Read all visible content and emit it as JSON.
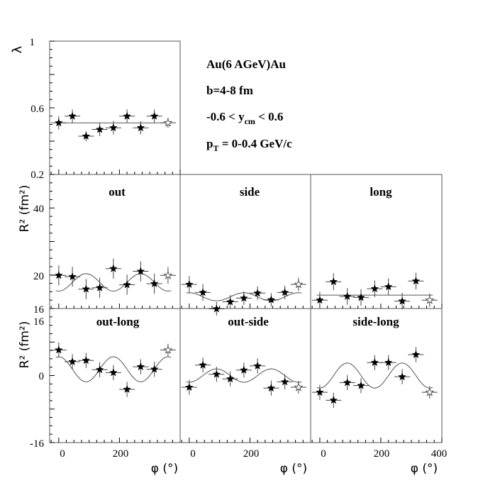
{
  "annotations": {
    "system": "Au(6 AGeV)Au",
    "impact": "b=4-8 fm",
    "rapidity_prefix": "-0.6 < y",
    "rapidity_sub": "cm",
    "rapidity_suffix": " < 0.6",
    "pt_prefix": "p",
    "pt_sub": "T",
    "pt_suffix": " = 0-0.4 GeV/c"
  },
  "axes": {
    "lambda_label": "λ",
    "r2_label": "R² (fm²)",
    "x_label": "φ (°)",
    "lambda_ticks": [
      "1",
      "0.6",
      "0.2"
    ],
    "r2_mid_ticks": [
      "40",
      "20",
      "16"
    ],
    "r2_bot_ticks": [
      "16",
      "0",
      "-16"
    ],
    "x_ticks": [
      "0",
      "200",
      "400"
    ]
  },
  "chart_data": [
    {
      "type": "scatter",
      "panel": "lambda",
      "title": "",
      "ylim": [
        0.2,
        1.0
      ],
      "xlim": [
        -30,
        400
      ],
      "fit": {
        "mean": 0.51,
        "amplitude": 0.0
      },
      "x": [
        0,
        45,
        90,
        135,
        180,
        225,
        270,
        315,
        360
      ],
      "y": [
        0.51,
        0.55,
        0.43,
        0.47,
        0.48,
        0.55,
        0.48,
        0.55,
        0.51
      ],
      "yerr": [
        0.04,
        0.04,
        0.03,
        0.04,
        0.04,
        0.04,
        0.04,
        0.04,
        0.03
      ]
    },
    {
      "type": "scatter",
      "panel": "out",
      "title": "out",
      "ylim": [
        16,
        56
      ],
      "xlim": [
        -30,
        400
      ],
      "fit": {
        "mean": 23.8,
        "amplitude": -2.6
      },
      "x": [
        0,
        45,
        90,
        135,
        180,
        225,
        270,
        315,
        360
      ],
      "y": [
        25.9,
        25.5,
        21.8,
        22.2,
        27.9,
        23.1,
        27.1,
        23.4,
        25.9
      ],
      "yerr": [
        3.0,
        3.0,
        3.0,
        3.0,
        3.0,
        3.0,
        3.0,
        3.0,
        2.5
      ]
    },
    {
      "type": "scatter",
      "panel": "side",
      "title": "side",
      "ylim": [
        16,
        56
      ],
      "xlim": [
        -30,
        400
      ],
      "fit": {
        "mean": 19.5,
        "amplitude": 1.2
      },
      "x": [
        0,
        45,
        90,
        135,
        180,
        225,
        270,
        315,
        360
      ],
      "y": [
        23.2,
        20.8,
        15.9,
        18.0,
        19.1,
        20.6,
        18.6,
        20.8,
        23.2
      ],
      "yerr": [
        2.5,
        2.5,
        2.0,
        2.0,
        2.0,
        2.0,
        2.0,
        2.0,
        2.0
      ]
    },
    {
      "type": "scatter",
      "panel": "long",
      "title": "long",
      "ylim": [
        16,
        56
      ],
      "xlim": [
        -30,
        400
      ],
      "fit": {
        "mean": 20.0,
        "amplitude": 0.0
      },
      "x": [
        0,
        45,
        90,
        135,
        180,
        225,
        270,
        315,
        360
      ],
      "y": [
        18.5,
        24.0,
        19.6,
        19.3,
        21.9,
        22.5,
        18.2,
        24.2,
        18.5
      ],
      "yerr": [
        2.5,
        2.5,
        2.5,
        2.5,
        2.5,
        2.5,
        2.5,
        2.5,
        2.0
      ]
    },
    {
      "type": "scatter",
      "panel": "out-long",
      "title": "out-long",
      "ylim": [
        -16,
        16
      ],
      "xlim": [
        -30,
        400
      ],
      "fit": {
        "mean": 1.5,
        "amplitude": 3.0
      },
      "x": [
        0,
        45,
        90,
        135,
        180,
        225,
        270,
        315,
        360
      ],
      "y": [
        6.1,
        3.3,
        3.6,
        1.4,
        0.7,
        -3.3,
        2.1,
        1.5,
        6.1
      ],
      "yerr": [
        1.8,
        1.8,
        1.8,
        1.8,
        1.8,
        1.8,
        1.8,
        1.8,
        1.5
      ]
    },
    {
      "type": "scatter",
      "panel": "out-side",
      "title": "out-side",
      "ylim": [
        -16,
        16
      ],
      "xlim": [
        -30,
        400
      ],
      "fit": {
        "mean": 0.0,
        "amplitude": -1.6
      },
      "x": [
        0,
        45,
        90,
        135,
        180,
        225,
        270,
        315,
        360
      ],
      "y": [
        -2.8,
        2.5,
        0.3,
        -0.8,
        1.3,
        2.3,
        -3.0,
        -1.5,
        -2.8
      ],
      "yerr": [
        1.8,
        1.8,
        1.8,
        1.8,
        1.8,
        1.8,
        1.8,
        1.8,
        1.5
      ]
    },
    {
      "type": "scatter",
      "panel": "side-long",
      "title": "side-long",
      "ylim": [
        -16,
        16
      ],
      "xlim": [
        -30,
        400
      ],
      "fit": {
        "mean": 0.0,
        "amplitude": -3.0
      },
      "x": [
        0,
        45,
        90,
        135,
        180,
        225,
        270,
        315,
        360
      ],
      "y": [
        -4.0,
        -5.9,
        -1.7,
        -2.4,
        3.1,
        3.1,
        -0.3,
        5.0,
        -4.0
      ],
      "yerr": [
        1.8,
        1.8,
        1.8,
        1.8,
        1.8,
        1.8,
        1.8,
        1.8,
        1.5
      ]
    }
  ]
}
